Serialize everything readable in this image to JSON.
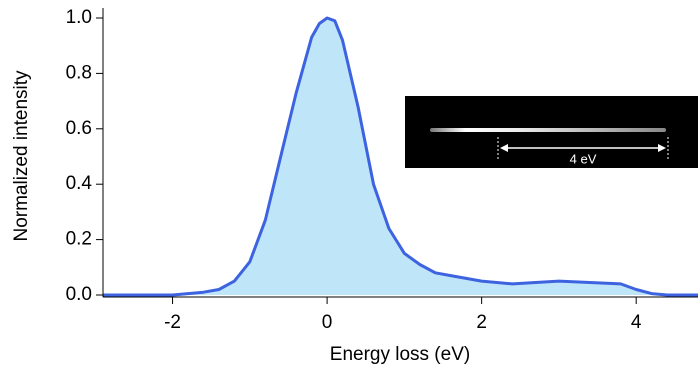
{
  "chart_data": {
    "type": "area",
    "xlabel": "Energy loss (eV)",
    "ylabel": "Normalized intensity",
    "x": [
      -2.9,
      -2.4,
      -2,
      -1.6,
      -1.4,
      -1.2,
      -1.0,
      -0.8,
      -0.6,
      -0.4,
      -0.2,
      -0.1,
      0,
      0.1,
      0.2,
      0.4,
      0.6,
      0.8,
      1.0,
      1.2,
      1.4,
      1.6,
      1.8,
      2.0,
      2.4,
      3.0,
      3.4,
      3.8,
      4.0,
      4.2,
      4.4,
      4.8
    ],
    "values": [
      0.0,
      0.0,
      0.0,
      0.01,
      0.02,
      0.05,
      0.12,
      0.27,
      0.5,
      0.73,
      0.93,
      0.98,
      1.0,
      0.99,
      0.92,
      0.68,
      0.4,
      0.24,
      0.15,
      0.11,
      0.08,
      0.07,
      0.06,
      0.05,
      0.04,
      0.05,
      0.045,
      0.04,
      0.02,
      0.005,
      0.0,
      0.0
    ],
    "color": "#3d63e0",
    "fill": "#bfe5f8",
    "xlim": [
      -2.9,
      4.8
    ],
    "ylim": [
      0,
      1
    ],
    "xticks": [
      -2,
      0,
      2,
      4
    ],
    "yticks": [
      {
        "value": 0,
        "label": "0.0"
      },
      0.2,
      0.4,
      0.6,
      0.8,
      {
        "value": 1,
        "label": "1.0"
      }
    ],
    "inset_annotation": "4 eV"
  }
}
